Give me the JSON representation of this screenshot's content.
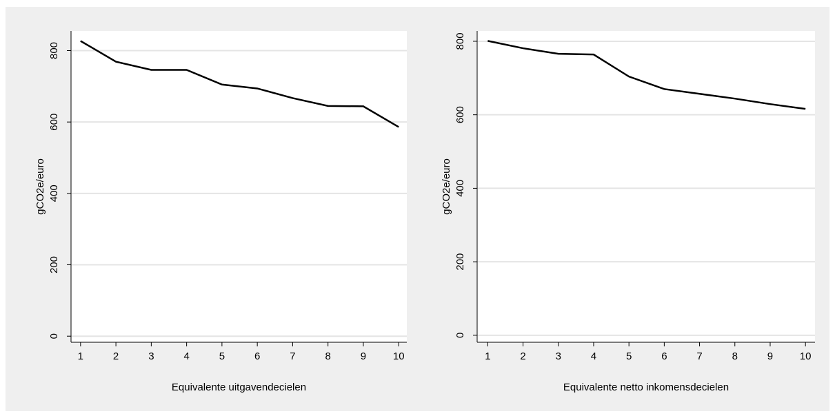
{
  "chart_data": [
    {
      "type": "line",
      "x_label": "Equivalente uitgavendecielen",
      "y_label": "gCO2e/euro",
      "x": [
        1,
        2,
        3,
        4,
        5,
        6,
        7,
        8,
        9,
        10
      ],
      "values": [
        827,
        769,
        746,
        746,
        705,
        694,
        667,
        645,
        644,
        586
      ],
      "color": "#000000",
      "xlim": [
        0.73,
        10.23
      ],
      "ylim": [
        -17,
        855
      ],
      "xticks": [
        1,
        2,
        3,
        4,
        5,
        6,
        7,
        8,
        9,
        10
      ],
      "yticks": [
        0,
        200,
        400,
        600,
        800
      ],
      "grid": true
    },
    {
      "type": "line",
      "x_label": "Equivalente netto inkomensdecielen",
      "y_label": "gCO2e/euro",
      "x": [
        1,
        2,
        3,
        4,
        5,
        6,
        7,
        8,
        9,
        10
      ],
      "values": [
        801,
        781,
        766,
        764,
        704,
        670,
        657,
        644,
        629,
        616
      ],
      "color": "#000000",
      "xlim": [
        0.7,
        10.27
      ],
      "ylim": [
        -19,
        828
      ],
      "xticks": [
        1,
        2,
        3,
        4,
        5,
        6,
        7,
        8,
        9,
        10
      ],
      "yticks": [
        0,
        200,
        400,
        600,
        800
      ],
      "grid": true
    }
  ]
}
